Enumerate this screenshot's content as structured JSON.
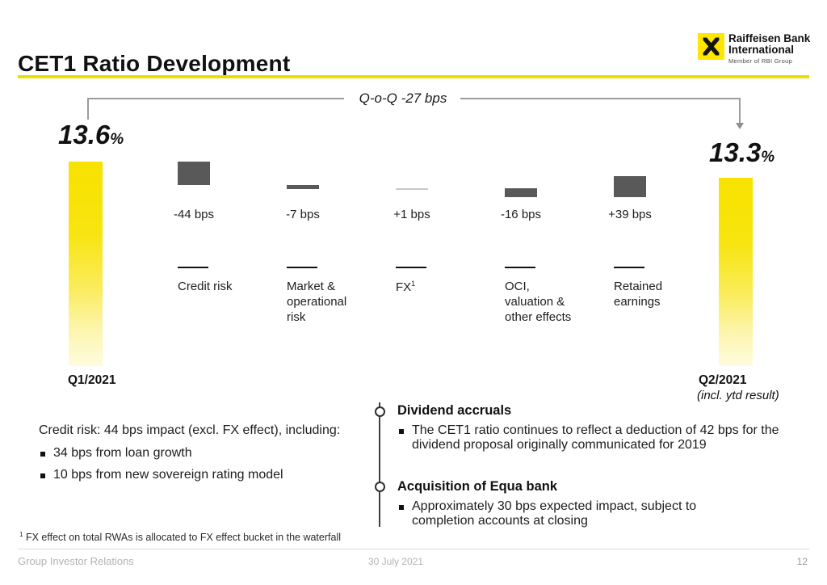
{
  "slide": {
    "title": "CET1 Ratio Development",
    "logo": {
      "line1": "Raiffeisen Bank",
      "line2": "International",
      "subtitle": "Member of RBI Group",
      "brand_yellow": "#FFE600"
    },
    "footnote_marker": "1",
    "footnote": " FX effect on total RWAs is allocated to FX effect bucket in the waterfall",
    "footer": {
      "left": "Group Investor Relations",
      "center": "30 July 2021",
      "page": "12"
    }
  },
  "chart_data": {
    "type": "bar",
    "subtype": "waterfall",
    "title": "CET1 Ratio Development",
    "annotation": "Q-o-Q -27 bps",
    "unit": "bps",
    "start": {
      "label": "Q1/2021",
      "value_pct": 13.6,
      "display": "13.6",
      "unit": "%"
    },
    "end": {
      "label": "Q2/2021",
      "sublabel": "(incl. ytd result)",
      "value_pct": 13.3,
      "display": "13.3",
      "unit": "%"
    },
    "deltas": [
      {
        "label": "Credit risk",
        "value_bps": -44,
        "display": "-44 bps"
      },
      {
        "label": "Market &\noperational\nrisk",
        "value_bps": -7,
        "display": "-7 bps"
      },
      {
        "label": "FX",
        "footnote_marker": "1",
        "value_bps": 1,
        "display": "+1 bps"
      },
      {
        "label": "OCI,\nvaluation &\nother effects",
        "value_bps": -16,
        "display": "-16 bps"
      },
      {
        "label": "Retained\nearnings",
        "value_bps": 39,
        "display": "+39 bps"
      }
    ],
    "colors": {
      "start_end_bar": "#F8E200",
      "delta_bar": "#595959",
      "tiny_delta_bar": "#c9c9c9",
      "accent_rule": "#E8E000"
    }
  },
  "notes": {
    "left": {
      "intro": "Credit risk: 44 bps impact (excl. FX effect), including:",
      "bullets": [
        "34 bps from loan growth",
        "10 bps from new sovereign rating model"
      ]
    },
    "timeline": [
      {
        "heading": "Dividend accruals",
        "bullets": [
          "The CET1 ratio continues to reflect a deduction of 42 bps for the dividend proposal originally communicated for 2019"
        ]
      },
      {
        "heading": "Acquisition of Equa bank",
        "bullets": [
          "Approximately 30 bps expected impact, subject to completion accounts at closing"
        ]
      }
    ]
  }
}
